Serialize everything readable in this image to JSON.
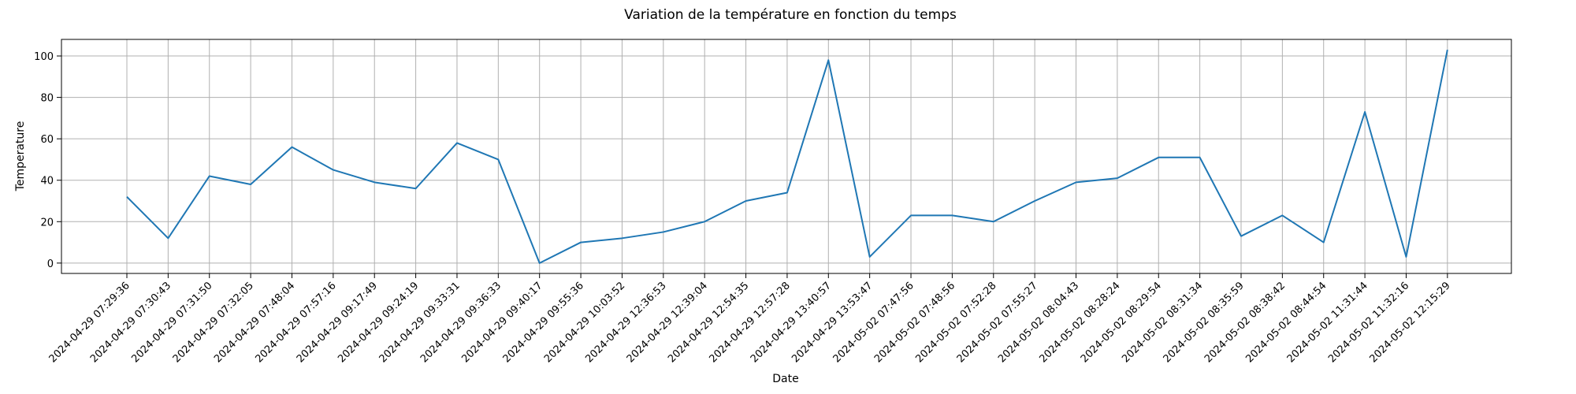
{
  "chart_data": {
    "type": "line",
    "title": "Variation de la température en fonction du temps",
    "xlabel": "Date",
    "ylabel": "Temperature",
    "ylim": [
      -5,
      108
    ],
    "yticks": [
      0,
      20,
      40,
      60,
      80,
      100
    ],
    "grid": true,
    "x": [
      "2024-04-29 07:29:36",
      "2024-04-29 07:30:43",
      "2024-04-29 07:31:50",
      "2024-04-29 07:32:05",
      "2024-04-29 07:48:04",
      "2024-04-29 07:57:16",
      "2024-04-29 09:17:49",
      "2024-04-29 09:24:19",
      "2024-04-29 09:33:31",
      "2024-04-29 09:36:33",
      "2024-04-29 09:40:17",
      "2024-04-29 09:55:36",
      "2024-04-29 10:03:52",
      "2024-04-29 12:36:53",
      "2024-04-29 12:39:04",
      "2024-04-29 12:54:35",
      "2024-04-29 12:57:28",
      "2024-04-29 13:40:57",
      "2024-04-29 13:53:47",
      "2024-05-02 07:47:56",
      "2024-05-02 07:48:56",
      "2024-05-02 07:52:28",
      "2024-05-02 07:55:27",
      "2024-05-02 08:04:43",
      "2024-05-02 08:28:24",
      "2024-05-02 08:29:54",
      "2024-05-02 08:31:34",
      "2024-05-02 08:35:59",
      "2024-05-02 08:38:42",
      "2024-05-02 08:44:54",
      "2024-05-02 11:31:44",
      "2024-05-02 11:32:16",
      "2024-05-02 12:15:29"
    ],
    "series": [
      {
        "values": [
          32,
          12,
          42,
          38,
          56,
          45,
          39,
          36,
          58,
          50,
          0,
          10,
          12,
          15,
          20,
          30,
          34,
          98,
          3,
          23,
          23,
          20,
          30,
          39,
          41,
          51,
          51,
          13,
          23,
          10,
          73,
          3,
          103
        ]
      }
    ]
  }
}
